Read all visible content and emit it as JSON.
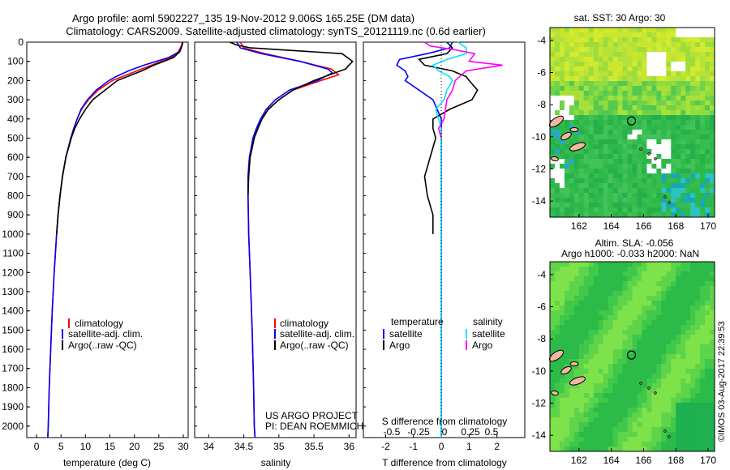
{
  "header": {
    "line1": "Argo profile: aoml 5902227_135 19-Nov-2012 9.006S 165.25E (DM data)",
    "line2": "Climatology: CARS2009. Satellite-adjusted climatology: synTS_20121119.nc (0.6d earlier)"
  },
  "credit": {
    "project": "US ARGO PROJECT",
    "pi": "PI: DEAN ROEMMICH",
    "imos": "©IMOS 03-Aug-2017 22:39:53"
  },
  "colors": {
    "climatology": "#ff0000",
    "satellite": "#0000ff",
    "argo": "#000000",
    "sal_satellite": "#00e5ff",
    "sal_argo": "#ff00ff",
    "land": "#f0b8a0",
    "mask": "#ffffff",
    "map_green": "#2db84a"
  },
  "depth_ticks": [
    "0",
    "100",
    "200",
    "300",
    "400",
    "500",
    "600",
    "700",
    "800",
    "900",
    "1000",
    "1100",
    "1200",
    "1300",
    "1400",
    "1500",
    "1600",
    "1700",
    "1800",
    "1900",
    "2000"
  ],
  "chart_data": [
    {
      "id": "temperature",
      "type": "line",
      "xlabel": "temperature (deg C)",
      "ylabel": "",
      "xlim": [
        -2,
        31
      ],
      "ylim": [
        2060,
        0
      ],
      "xticks": [
        "0",
        "5",
        "10",
        "15",
        "20",
        "25",
        "30"
      ],
      "legend": [
        "climatology",
        "satellite-adj. clim.",
        "Argo(..raw -QC)"
      ],
      "series": [
        {
          "name": "climatology",
          "color": "#ff0000",
          "depth": [
            0,
            20,
            50,
            80,
            100,
            120,
            150,
            180,
            200,
            250,
            300,
            350,
            400,
            450,
            500,
            600,
            700,
            800,
            900,
            1000,
            1200,
            1400,
            1600,
            1800,
            2000,
            2060
          ],
          "values": [
            29.8,
            29.6,
            29.0,
            27.5,
            25.5,
            23.5,
            20.5,
            17.5,
            15.5,
            12.6,
            10.6,
            9.2,
            8.3,
            7.6,
            7.0,
            6.0,
            5.3,
            4.8,
            4.4,
            4.1,
            3.6,
            3.2,
            2.9,
            2.6,
            2.4,
            2.3
          ]
        },
        {
          "name": "satellite-adj. clim.",
          "color": "#0000ff",
          "depth": [
            0,
            20,
            50,
            80,
            100,
            120,
            150,
            180,
            200,
            250,
            300,
            350,
            400,
            450,
            500,
            600,
            700,
            800,
            900,
            1000,
            1200,
            1400,
            1600,
            1800,
            2000,
            2060
          ],
          "values": [
            29.9,
            29.7,
            29.2,
            27.0,
            24.5,
            22.0,
            18.8,
            16.2,
            14.8,
            12.2,
            10.4,
            9.1,
            8.3,
            7.6,
            7.0,
            6.0,
            5.3,
            4.8,
            4.4,
            4.1,
            3.6,
            3.2,
            2.9,
            2.6,
            2.4,
            2.3
          ]
        },
        {
          "name": "Argo(..raw -QC)",
          "color": "#000000",
          "depth": [
            0,
            20,
            50,
            80,
            100,
            120,
            150,
            180,
            200,
            250,
            300,
            350,
            400,
            450,
            500,
            600,
            700,
            800,
            900,
            1000
          ],
          "values": [
            29.9,
            29.7,
            29.3,
            28.0,
            26.0,
            24.0,
            21.5,
            18.5,
            16.5,
            14.0,
            11.5,
            10.0,
            8.8,
            7.8,
            7.1,
            6.0,
            5.3,
            4.8,
            4.4,
            4.1
          ]
        }
      ]
    },
    {
      "id": "salinity",
      "type": "line",
      "xlabel": "salinity",
      "ylabel": "",
      "xlim": [
        33.8,
        36.1
      ],
      "ylim": [
        2060,
        0
      ],
      "xticks": [
        "34",
        "34.5",
        "35",
        "35.5",
        "36"
      ],
      "legend": [
        "climatology",
        "satellite-adj. clim.",
        "Argo(..raw -QC)"
      ],
      "series": [
        {
          "name": "climatology",
          "color": "#ff0000",
          "depth": [
            0,
            30,
            60,
            100,
            140,
            170,
            200,
            250,
            300,
            350,
            400,
            450,
            500,
            600,
            700,
            800,
            1000,
            1200,
            1500,
            1800,
            2000,
            2060
          ],
          "values": [
            34.45,
            34.5,
            34.8,
            35.3,
            35.75,
            35.85,
            35.6,
            35.2,
            35.0,
            34.85,
            34.75,
            34.7,
            34.64,
            34.58,
            34.56,
            34.56,
            34.57,
            34.59,
            34.62,
            34.64,
            34.65,
            34.66
          ]
        },
        {
          "name": "satellite-adj. clim.",
          "color": "#0000ff",
          "depth": [
            0,
            30,
            60,
            100,
            140,
            160,
            200,
            250,
            300,
            350,
            400,
            450,
            500,
            600,
            700,
            800,
            1000,
            1200,
            1500,
            1800,
            2000,
            2060
          ],
          "values": [
            34.4,
            34.45,
            34.75,
            35.3,
            35.7,
            35.76,
            35.55,
            35.15,
            34.95,
            34.82,
            34.74,
            34.68,
            34.63,
            34.58,
            34.56,
            34.56,
            34.57,
            34.59,
            34.62,
            34.64,
            34.65,
            34.66
          ]
        },
        {
          "name": "Argo(..raw -QC)",
          "color": "#000000",
          "depth": [
            0,
            15,
            30,
            60,
            100,
            140,
            160,
            200,
            250,
            300,
            350,
            400,
            450,
            500,
            600,
            700,
            800
          ],
          "values": [
            34.3,
            34.4,
            34.6,
            35.9,
            36.05,
            35.95,
            35.8,
            35.5,
            35.2,
            35.0,
            34.85,
            34.76,
            34.7,
            34.65,
            34.59,
            34.57,
            34.56
          ]
        }
      ]
    },
    {
      "id": "differences",
      "type": "line",
      "xlabel": "T difference from climatology",
      "xlabel_top": "S difference from climatology",
      "xlim": [
        -2.8,
        3.0
      ],
      "ylim": [
        2060,
        0
      ],
      "xticks": [
        "-2",
        "-1",
        "0",
        "1",
        "2"
      ],
      "xticks_s": [
        "-0.5",
        "-0.25",
        "0",
        "0.25",
        "0.5"
      ],
      "legend_titles": [
        "temperature",
        "salinity"
      ],
      "legend": [
        "satellite",
        "Argo",
        "satellite",
        "Argo"
      ],
      "series": [
        {
          "name": "satellite",
          "group": "temperature",
          "color": "#0000ff",
          "depth": [
            0,
            30,
            60,
            90,
            120,
            150,
            180,
            200,
            250,
            300,
            350,
            400,
            450,
            500,
            600,
            800,
            1000,
            1500,
            2000,
            2060
          ],
          "values": [
            0.4,
            0.3,
            -0.5,
            -1.5,
            -1.6,
            -1.3,
            -1.2,
            -1.3,
            -0.8,
            -0.3,
            -0.15,
            0,
            0,
            0,
            0,
            0,
            0,
            0,
            0,
            0
          ]
        },
        {
          "name": "Argo",
          "group": "temperature",
          "color": "#000000",
          "depth": [
            0,
            30,
            60,
            90,
            120,
            150,
            180,
            200,
            250,
            300,
            350,
            400,
            450,
            500,
            600,
            700,
            800,
            900,
            1000
          ],
          "values": [
            0.2,
            0.4,
            0.2,
            -0.8,
            -0.6,
            0.4,
            0.9,
            1.0,
            1.3,
            1.1,
            0.3,
            -0.3,
            -0.3,
            -0.2,
            -0.4,
            -0.6,
            -0.5,
            -0.3,
            -0.3
          ]
        },
        {
          "name": "satellite",
          "group": "salinity",
          "color": "#00e5ff",
          "depth": [
            0,
            30,
            60,
            90,
            120,
            150,
            180,
            200,
            250,
            300,
            350,
            400,
            450,
            500,
            800,
            1000,
            1500,
            2000,
            2060
          ],
          "values": [
            0.6,
            0.9,
            0.9,
            0.2,
            -0.3,
            -0.1,
            0.3,
            0.4,
            0.2,
            0.1,
            -0.2,
            -0.1,
            0,
            0,
            0,
            0,
            0,
            0,
            0
          ]
        },
        {
          "name": "Argo",
          "group": "salinity",
          "color": "#ff00ff",
          "depth": [
            0,
            20,
            40,
            60,
            100,
            120,
            150,
            200,
            250,
            300,
            400,
            450,
            500
          ],
          "values": [
            -0.6,
            -0.4,
            0.5,
            1.2,
            1.0,
            2.2,
            0.9,
            0.5,
            0.4,
            0.2,
            0.1,
            -0.1,
            0
          ]
        }
      ]
    },
    {
      "id": "sst_map",
      "type": "heatmap",
      "title": "sat. SST: 30 Argo: 30",
      "xlim": [
        160.2,
        170.4
      ],
      "ylim": [
        -15,
        -3.2
      ],
      "xticks": [
        "162",
        "164",
        "166",
        "168",
        "170"
      ],
      "yticks": [
        "-4",
        "-6",
        "-8",
        "-10",
        "-12",
        "-14"
      ],
      "marker": [
        165.25,
        -9.006
      ]
    },
    {
      "id": "sla_map",
      "type": "heatmap",
      "title": "Altim. SLA: -0.056",
      "subtitle": "Argo h1000: -0.033 h2000: NaN",
      "xlim": [
        160.2,
        170.4
      ],
      "ylim": [
        -15,
        -3.2
      ],
      "xticks": [
        "162",
        "164",
        "166",
        "168",
        "170"
      ],
      "yticks": [
        "-4",
        "-6",
        "-8",
        "-10",
        "-12",
        "-14"
      ],
      "marker": [
        165.25,
        -9.006
      ]
    }
  ]
}
